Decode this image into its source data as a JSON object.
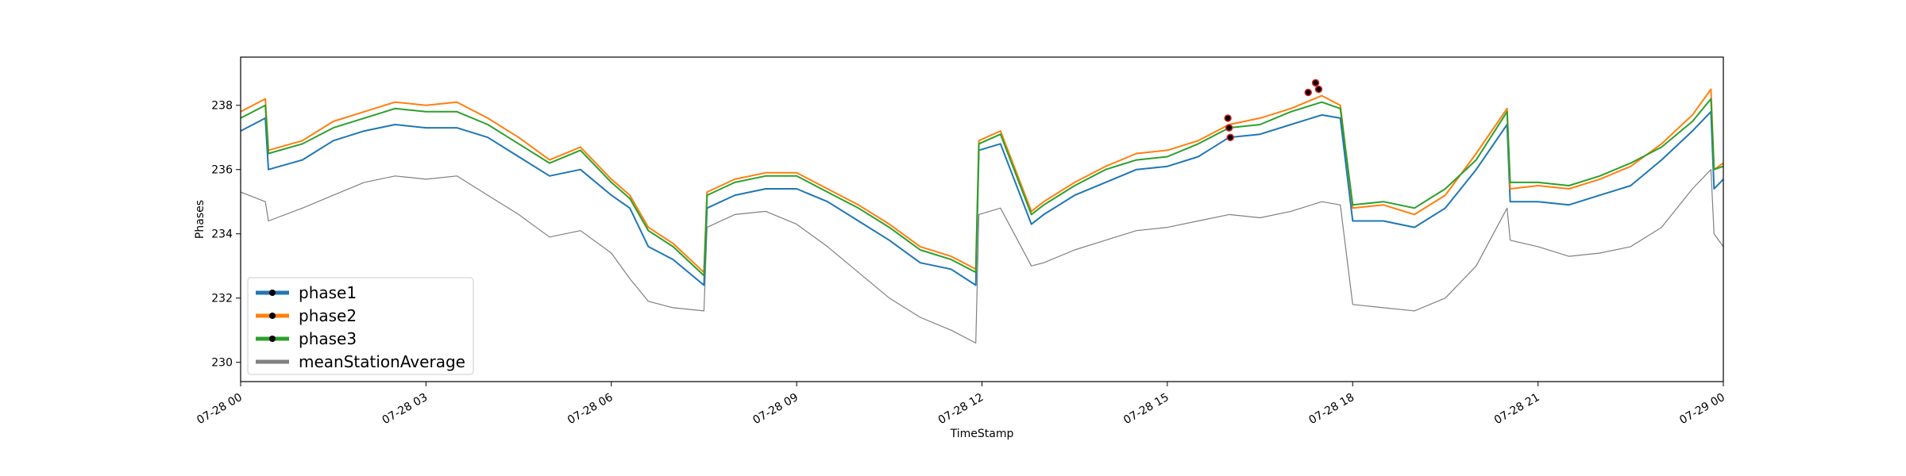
{
  "chart_data": {
    "type": "line",
    "title": "",
    "xlabel": "TimeStamp",
    "ylabel": "Phases",
    "x_domain_hours": [
      0,
      24
    ],
    "ylim": [
      229.4,
      239.5
    ],
    "y_ticks": [
      230,
      232,
      234,
      236,
      238
    ],
    "x_ticks": [
      {
        "hour": 0,
        "label": "07-28 00"
      },
      {
        "hour": 3,
        "label": "07-28 03"
      },
      {
        "hour": 6,
        "label": "07-28 06"
      },
      {
        "hour": 9,
        "label": "07-28 09"
      },
      {
        "hour": 12,
        "label": "07-28 12"
      },
      {
        "hour": 15,
        "label": "07-28 15"
      },
      {
        "hour": 18,
        "label": "07-28 18"
      },
      {
        "hour": 21,
        "label": "07-28 21"
      },
      {
        "hour": 24,
        "label": "07-29 00"
      }
    ],
    "legend_position": "lower-left",
    "grid": false,
    "x": [
      0,
      0.4,
      0.45,
      1,
      1.5,
      2,
      2.5,
      3,
      3.5,
      4,
      4.5,
      5,
      5.5,
      6,
      6.3,
      6.6,
      7,
      7.5,
      7.55,
      8,
      8.5,
      9,
      9.5,
      10,
      10.5,
      11,
      11.5,
      11.9,
      11.95,
      12.3,
      12.8,
      13,
      13.5,
      14,
      14.5,
      15,
      15.5,
      16,
      16.5,
      17,
      17.5,
      17.8,
      18,
      18.5,
      19,
      19.5,
      20,
      20.5,
      20.55,
      21,
      21.5,
      22,
      22.5,
      23,
      23.5,
      23.8,
      23.85,
      24
    ],
    "series": [
      {
        "name": "phase1",
        "color": "#1f77b4",
        "values": [
          237.2,
          237.6,
          236.0,
          236.3,
          236.9,
          237.2,
          237.4,
          237.3,
          237.3,
          237.0,
          236.4,
          235.8,
          236.0,
          235.2,
          234.8,
          233.6,
          233.2,
          232.4,
          234.8,
          235.2,
          235.4,
          235.4,
          235.0,
          234.4,
          233.8,
          233.1,
          232.9,
          232.4,
          236.6,
          236.8,
          234.3,
          234.6,
          235.2,
          235.6,
          236.0,
          236.1,
          236.4,
          237.0,
          237.1,
          237.4,
          237.7,
          237.6,
          234.4,
          234.4,
          234.2,
          234.8,
          236.0,
          237.4,
          235.0,
          235.0,
          234.9,
          235.2,
          235.5,
          236.3,
          237.2,
          237.8,
          235.4,
          235.7
        ]
      },
      {
        "name": "phase2",
        "color": "#ff7f0e",
        "values": [
          237.8,
          238.2,
          236.6,
          236.9,
          237.5,
          237.8,
          238.1,
          238.0,
          238.1,
          237.6,
          237.0,
          236.3,
          236.7,
          235.7,
          235.2,
          234.2,
          233.7,
          232.8,
          235.3,
          235.7,
          235.9,
          235.9,
          235.4,
          234.9,
          234.3,
          233.6,
          233.3,
          232.9,
          236.9,
          237.2,
          234.7,
          235.0,
          235.6,
          236.1,
          236.5,
          236.6,
          236.9,
          237.4,
          237.6,
          237.9,
          238.3,
          238.0,
          234.8,
          234.9,
          234.6,
          235.2,
          236.5,
          237.9,
          235.4,
          235.5,
          235.4,
          235.7,
          236.1,
          236.8,
          237.7,
          238.5,
          236.0,
          236.2
        ]
      },
      {
        "name": "phase3",
        "color": "#2ca02c",
        "values": [
          237.6,
          238.0,
          236.5,
          236.8,
          237.3,
          237.6,
          237.9,
          237.8,
          237.8,
          237.4,
          236.8,
          236.2,
          236.6,
          235.6,
          235.1,
          234.1,
          233.6,
          232.7,
          235.2,
          235.6,
          235.8,
          235.8,
          235.3,
          234.8,
          234.2,
          233.5,
          233.2,
          232.8,
          236.8,
          237.1,
          234.6,
          234.9,
          235.5,
          236.0,
          236.3,
          236.4,
          236.8,
          237.3,
          237.4,
          237.8,
          238.1,
          237.9,
          234.9,
          235.0,
          234.8,
          235.4,
          236.3,
          237.8,
          235.6,
          235.6,
          235.5,
          235.8,
          236.2,
          236.7,
          237.5,
          238.2,
          236.0,
          236.1
        ]
      },
      {
        "name": "meanStationAverage",
        "color": "#808080",
        "values": [
          235.3,
          235.0,
          234.4,
          234.8,
          235.2,
          235.6,
          235.8,
          235.7,
          235.8,
          235.2,
          234.6,
          233.9,
          234.1,
          233.4,
          232.6,
          231.9,
          231.7,
          231.6,
          234.2,
          234.6,
          234.7,
          234.3,
          233.6,
          232.8,
          232.0,
          231.4,
          231.0,
          230.6,
          234.6,
          234.8,
          233.0,
          233.1,
          233.5,
          233.8,
          234.1,
          234.2,
          234.4,
          234.6,
          234.5,
          234.7,
          235.0,
          234.9,
          231.8,
          231.7,
          231.6,
          232.0,
          233.0,
          234.8,
          233.8,
          233.6,
          233.3,
          233.4,
          233.6,
          234.2,
          235.4,
          236.0,
          234.0,
          233.6
        ]
      }
    ],
    "anomaly_markers": {
      "marker_color": "#000000",
      "edge_color": "#d62728",
      "points": [
        {
          "x": 15.98,
          "y": 237.6
        },
        {
          "x": 16.0,
          "y": 237.3
        },
        {
          "x": 16.02,
          "y": 237.0
        },
        {
          "x": 17.28,
          "y": 238.4
        },
        {
          "x": 17.4,
          "y": 238.7
        },
        {
          "x": 17.45,
          "y": 238.5
        }
      ]
    }
  }
}
